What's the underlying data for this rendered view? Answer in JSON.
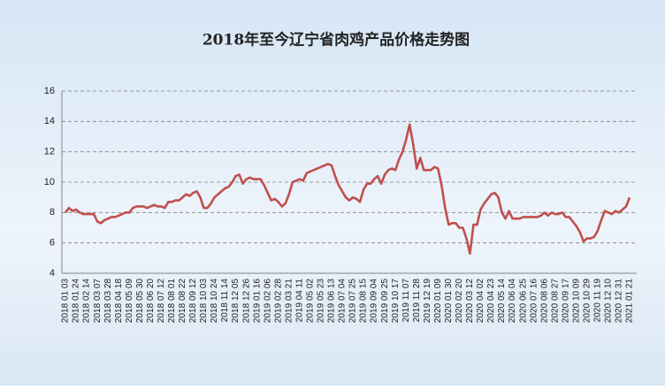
{
  "chart_data": {
    "type": "line",
    "title": "2018年至今辽宁省肉鸡产品价格走势图",
    "categories": [
      "2018 01 03",
      null,
      null,
      "2018 01 24",
      null,
      null,
      "2018 02 14",
      null,
      null,
      "2018 03 07",
      null,
      null,
      "2018 03 28",
      null,
      null,
      "2018 04 18",
      null,
      null,
      "2018 05 09",
      null,
      null,
      "2018 05 30",
      null,
      null,
      "2018 06 20",
      null,
      null,
      "2018 07 12",
      null,
      null,
      "2018 08 01",
      null,
      null,
      "2018 08 22",
      null,
      null,
      "2018 09 12",
      null,
      null,
      "2018 10 03",
      null,
      null,
      "2018 10 24",
      null,
      null,
      "2018 11 14",
      null,
      null,
      "2018 12 05",
      null,
      null,
      "2018 12 26",
      null,
      null,
      "2019 01 16",
      null,
      null,
      "2019 02 06",
      null,
      null,
      "2019 02 28",
      null,
      null,
      "2019 03 21",
      null,
      null,
      "2019 04 11",
      null,
      null,
      "2019 05 02",
      null,
      null,
      "2019 05 23",
      null,
      null,
      "2019 06 13",
      null,
      null,
      "2019 07 04",
      null,
      null,
      "2019 07 25",
      null,
      null,
      "2019 08 15",
      null,
      null,
      "2019 09 04",
      null,
      null,
      "2019 09 25",
      null,
      null,
      "2019 10 17",
      null,
      null,
      "2019 11 07",
      null,
      null,
      "2019 11 28",
      null,
      null,
      "2019 12 19",
      null,
      null,
      "2020 01 09",
      null,
      null,
      "2020 01 30",
      null,
      null,
      "2020 02 20",
      null,
      null,
      "2020 03 12",
      null,
      null,
      "2020 04 02",
      null,
      null,
      "2020 04 23",
      null,
      null,
      "2020 05 14",
      null,
      null,
      "2020 06 04",
      null,
      null,
      "2020 06 25",
      null,
      null,
      "2020 07 16",
      null,
      null,
      "2020 08 06",
      null,
      null,
      "2020 08 27",
      null,
      null,
      "2020 09 17",
      null,
      null,
      "2020 10 09",
      null,
      null,
      "2020 10 29",
      null,
      null,
      "2020 11 19",
      null,
      null,
      "2020 12 10",
      null,
      null,
      "2020 12 31",
      null,
      null,
      "2021 01 21"
    ],
    "series": [
      {
        "color": "#c0504d",
        "values": [
          8.0,
          8.3,
          8.1,
          8.2,
          8.0,
          7.9,
          7.9,
          7.9,
          7.9,
          7.4,
          7.3,
          7.5,
          7.6,
          7.7,
          7.7,
          7.8,
          7.9,
          8.0,
          8.0,
          8.3,
          8.4,
          8.4,
          8.4,
          8.3,
          8.4,
          8.5,
          8.4,
          8.4,
          8.3,
          8.7,
          8.7,
          8.8,
          8.8,
          9.0,
          9.2,
          9.1,
          9.3,
          9.4,
          9.0,
          8.3,
          8.3,
          8.6,
          9.0,
          9.2,
          9.4,
          9.6,
          9.7,
          10.0,
          10.4,
          10.5,
          9.9,
          10.2,
          10.3,
          10.2,
          10.2,
          10.2,
          9.8,
          9.3,
          8.8,
          8.9,
          8.7,
          8.4,
          8.6,
          9.2,
          10.0,
          10.1,
          10.2,
          10.1,
          10.6,
          10.7,
          10.8,
          10.9,
          11.0,
          11.1,
          11.2,
          11.1,
          10.4,
          9.8,
          9.4,
          9.0,
          8.8,
          9.0,
          8.9,
          8.7,
          9.5,
          9.9,
          9.9,
          10.2,
          10.4,
          9.9,
          10.5,
          10.8,
          10.9,
          10.8,
          11.5,
          12.0,
          12.8,
          13.8,
          12.5,
          10.9,
          11.6,
          10.8,
          10.8,
          10.8,
          11.0,
          10.9,
          9.8,
          8.3,
          7.2,
          7.3,
          7.3,
          7.0,
          7.0,
          6.3,
          5.3,
          7.2,
          7.2,
          8.2,
          8.6,
          8.9,
          9.2,
          9.3,
          9.0,
          8.0,
          7.6,
          8.1,
          7.6,
          7.6,
          7.6,
          7.7,
          7.7,
          7.7,
          7.7,
          7.7,
          7.8,
          8.0,
          7.8,
          8.0,
          7.9,
          7.9,
          8.0,
          7.7,
          7.7,
          7.4,
          7.1,
          6.7,
          6.1,
          6.3,
          6.3,
          6.4,
          6.8,
          7.5,
          8.1,
          8.0,
          7.9,
          8.1,
          8.0,
          8.2,
          8.4,
          9.0
        ]
      }
    ],
    "ylim": [
      4,
      16
    ],
    "yticks": [
      4,
      6,
      8,
      10,
      12,
      14,
      16
    ],
    "grid": true
  }
}
